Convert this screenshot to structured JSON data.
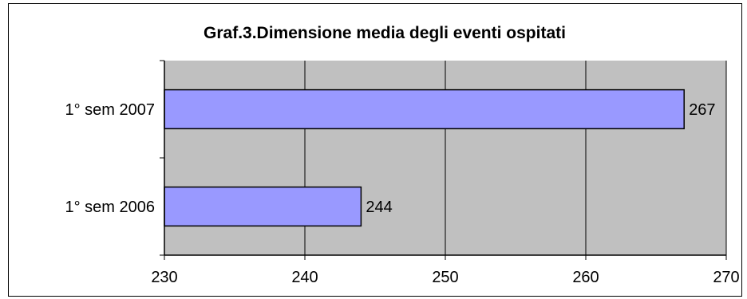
{
  "chart_data": {
    "type": "bar",
    "orientation": "horizontal",
    "title": "Graf.3.Dimensione media degli eventi ospitati",
    "categories": [
      "1° sem 2007",
      "1° sem 2006"
    ],
    "values": [
      267,
      244
    ],
    "data_labels": [
      "267",
      "244"
    ],
    "xlim": [
      230,
      270
    ],
    "xticks": [
      230,
      240,
      250,
      260,
      270
    ],
    "xtick_labels": [
      "230",
      "240",
      "250",
      "260",
      "270"
    ],
    "xlabel": "",
    "ylabel": "",
    "grid": true,
    "legend": "none",
    "colors": {
      "bar_fill": "#9999ff",
      "bar_stroke": "#000000",
      "plot_background": "#c0c0c0",
      "gridline": "#000000"
    }
  }
}
